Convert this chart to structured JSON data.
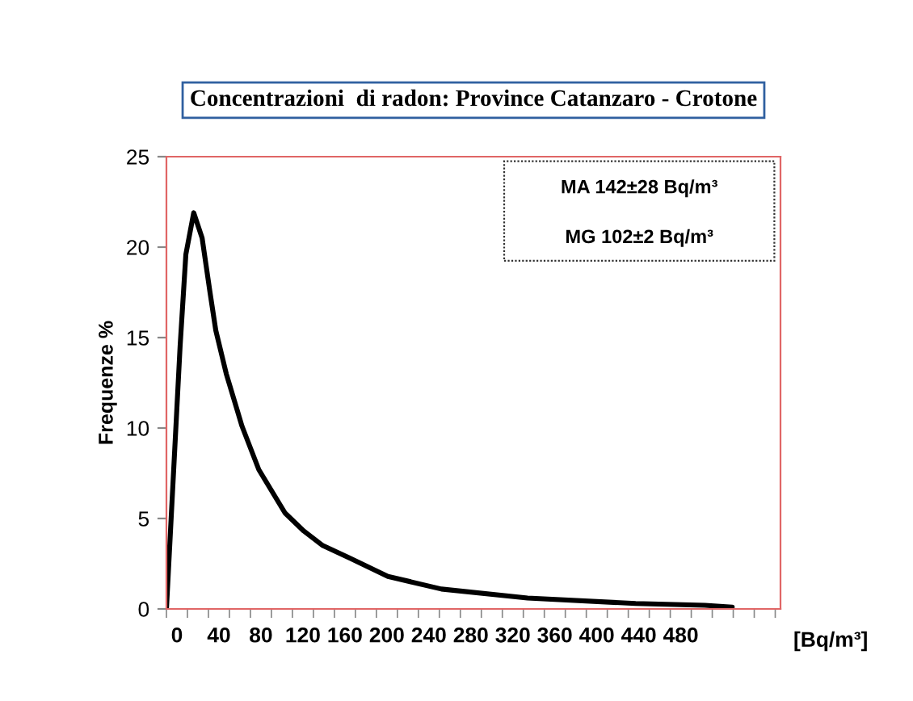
{
  "chart_data": {
    "type": "line",
    "title": "Concentrazioni  di radon: Province Catanzaro - Crotone",
    "ylabel": "Frequenze %",
    "xlabel": "[Bq/m³]",
    "annotations": [
      "MA 142±28 Bq/m³",
      "MG 102±2 Bq/m³"
    ],
    "series": [
      {
        "color": "#000000",
        "x": [
          -10,
          3,
          8.5,
          16,
          24,
          31.5,
          37,
          47,
          62,
          78,
          103,
          121,
          139,
          165,
          201,
          252,
          334,
          437,
          503,
          529
        ],
        "values": [
          0,
          14.5,
          19.6,
          21.9,
          20.5,
          17.5,
          15.4,
          13.0,
          10.1,
          7.7,
          5.3,
          4.3,
          3.5,
          2.8,
          1.8,
          1.1,
          0.6,
          0.3,
          0.2,
          0.1
        ]
      }
    ],
    "xlim": [
      -10,
      575
    ],
    "ylim": [
      0,
      25
    ],
    "yticks": [
      0,
      5,
      10,
      15,
      20,
      25
    ],
    "xticks": [
      0,
      40,
      80,
      120,
      160,
      200,
      240,
      280,
      320,
      360,
      400,
      440,
      480,
      {
        "value": -10,
        "label": null
      },
      {
        "value": 10,
        "label": null
      },
      {
        "value": 30,
        "label": null
      },
      {
        "value": 50,
        "label": null
      },
      {
        "value": 70,
        "label": null
      },
      {
        "value": 90,
        "label": null
      },
      {
        "value": 110,
        "label": null
      },
      {
        "value": 130,
        "label": null
      },
      {
        "value": 150,
        "label": null
      },
      {
        "value": 170,
        "label": null
      },
      {
        "value": 190,
        "label": null
      },
      {
        "value": 210,
        "label": null
      },
      {
        "value": 230,
        "label": null
      },
      {
        "value": 250,
        "label": null
      },
      {
        "value": 270,
        "label": null
      },
      {
        "value": 290,
        "label": null
      },
      {
        "value": 310,
        "label": null
      },
      {
        "value": 330,
        "label": null
      },
      {
        "value": 350,
        "label": null
      },
      {
        "value": 370,
        "label": null
      },
      {
        "value": 390,
        "label": null
      },
      {
        "value": 410,
        "label": null
      },
      {
        "value": 430,
        "label": null
      },
      {
        "value": 450,
        "label": null
      },
      {
        "value": 470,
        "label": null
      },
      {
        "value": 490,
        "label": null
      },
      {
        "value": 510,
        "label": null
      },
      {
        "value": 530,
        "label": null
      },
      {
        "value": 550,
        "label": null
      },
      {
        "value": 570,
        "label": null
      }
    ],
    "grid": false,
    "legend": false,
    "marker": "none",
    "line_style": "solid"
  }
}
